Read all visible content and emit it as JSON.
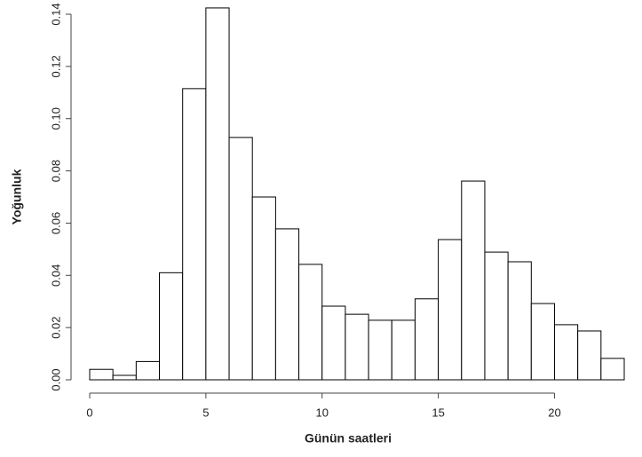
{
  "chart_data": {
    "type": "histogram",
    "x_label": "Günün saatleri",
    "y_label": "Yoğunluk",
    "bins": [
      0,
      1,
      2,
      3,
      4,
      5,
      6,
      7,
      8,
      9,
      10,
      11,
      12,
      13,
      14,
      15,
      16,
      17,
      18,
      19,
      20,
      21,
      22,
      23
    ],
    "values": [
      0.004,
      0.0017,
      0.007,
      0.041,
      0.1115,
      0.1424,
      0.0928,
      0.07,
      0.0578,
      0.0442,
      0.0282,
      0.0251,
      0.0228,
      0.0228,
      0.031,
      0.0537,
      0.0761,
      0.0489,
      0.0452,
      0.0292,
      0.0211,
      0.0187,
      0.0082
    ],
    "color": "#ffffff",
    "edge_color": "#000000",
    "xlim": [
      0,
      23
    ],
    "ylim": [
      0,
      0.14
    ],
    "xticks": [
      0,
      5,
      10,
      15,
      20
    ],
    "yticks": [
      {
        "value": 0,
        "label": "0.00"
      },
      {
        "value": 0.02,
        "label": "0.02"
      },
      {
        "value": 0.04,
        "label": "0.04"
      },
      {
        "value": 0.06,
        "label": "0.06"
      },
      {
        "value": 0.08,
        "label": "0.08"
      },
      {
        "value": 0.1,
        "label": "0.10"
      },
      {
        "value": 0.12,
        "label": "0.12"
      },
      {
        "value": 0.14,
        "label": "0.14"
      }
    ]
  }
}
